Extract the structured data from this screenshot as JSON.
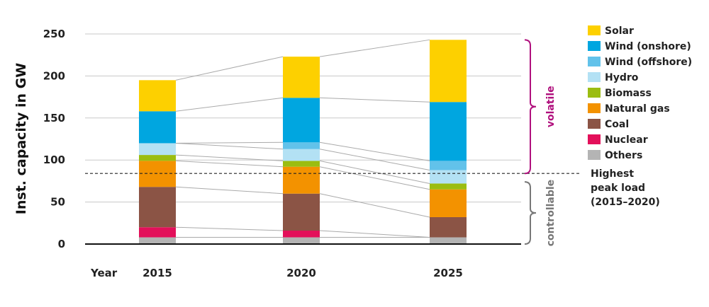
{
  "chart_data": {
    "type": "bar",
    "stacked": true,
    "ylabel": "Inst. capacity in GW",
    "xlabel": "Year",
    "ylim": [
      0,
      250
    ],
    "yticks": [
      0,
      50,
      100,
      150,
      200,
      250
    ],
    "grid": true,
    "legend_position": "right",
    "categories": [
      "2015",
      "2020",
      "2025"
    ],
    "series": [
      {
        "name": "Others",
        "color": "#b4b4b4",
        "values": [
          8,
          8,
          8
        ]
      },
      {
        "name": "Nuclear",
        "color": "#e3105a",
        "values": [
          12,
          8,
          0
        ]
      },
      {
        "name": "Coal",
        "color": "#8b5445",
        "values": [
          48,
          44,
          24
        ]
      },
      {
        "name": "Natural gas",
        "color": "#f39200",
        "values": [
          31,
          32,
          33
        ]
      },
      {
        "name": "Biomass",
        "color": "#9bbd11",
        "values": [
          7,
          7,
          7
        ]
      },
      {
        "name": "Hydro",
        "color": "#b3e1f4",
        "values": [
          14,
          14,
          16
        ]
      },
      {
        "name": "Wind (offshore)",
        "color": "#62c2ea",
        "values": [
          0,
          8,
          11
        ]
      },
      {
        "name": "Wind (onshore)",
        "color": "#00a6e0",
        "values": [
          38,
          53,
          70
        ]
      },
      {
        "name": "Solar",
        "color": "#fdd000",
        "values": [
          37,
          49,
          74
        ]
      }
    ],
    "legend_order": [
      "Solar",
      "Wind (onshore)",
      "Wind (offshore)",
      "Hydro",
      "Biomass",
      "Natural gas",
      "Coal",
      "Nuclear",
      "Others"
    ],
    "reference_line": {
      "value": 84,
      "label_lines": [
        "Highest",
        "peak load",
        "(2015–2020)"
      ]
    },
    "brackets": [
      {
        "label": "volatile",
        "from": 84,
        "to": 243,
        "color": "#b0107d"
      },
      {
        "label": "controllable",
        "from": 0,
        "to": 74,
        "color": "#777777"
      }
    ]
  }
}
